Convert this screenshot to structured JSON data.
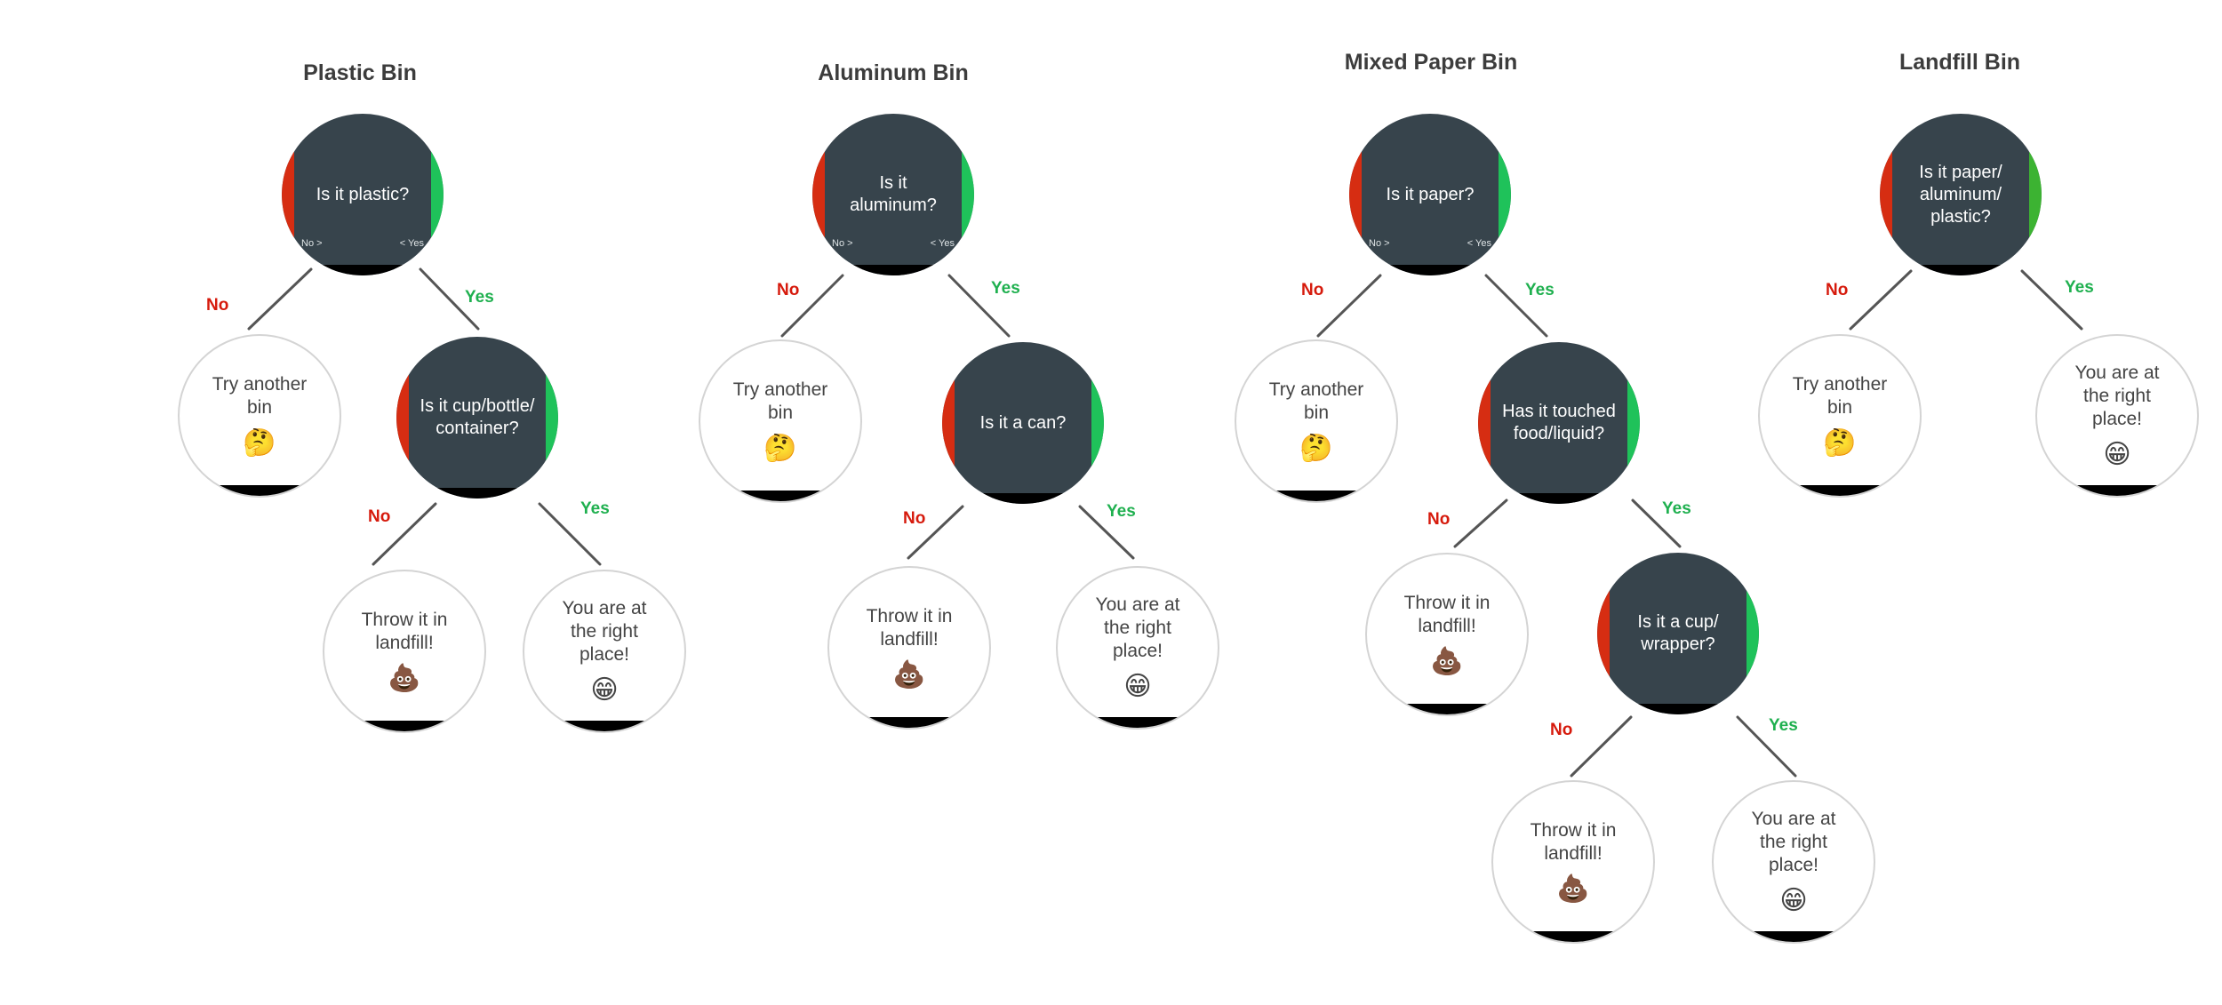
{
  "bins": [
    {
      "title": "Plastic Bin",
      "root": {
        "question": "Is it plastic?",
        "hint_no": "No >",
        "hint_yes": "< Yes"
      },
      "no_label": "No",
      "yes_label": "Yes",
      "no_node": {
        "text": "Try another bin",
        "emoji": "🤔"
      },
      "yes_node": {
        "question": "Is it cup/bottle/ container?"
      },
      "sub_no_label": "No",
      "sub_yes_label": "Yes",
      "sub_no_node": {
        "text": "Throw it in landfill!",
        "emoji": "💩"
      },
      "sub_yes_node": {
        "text": "You are at the right place!",
        "emoji": "😁"
      }
    },
    {
      "title": "Aluminum Bin",
      "root": {
        "question": "Is it aluminum?",
        "hint_no": "No >",
        "hint_yes": "< Yes"
      },
      "no_label": "No",
      "yes_label": "Yes",
      "no_node": {
        "text": "Try another bin",
        "emoji": "🤔"
      },
      "yes_node": {
        "question": "Is it a can?"
      },
      "sub_no_label": "No",
      "sub_yes_label": "Yes",
      "sub_no_node": {
        "text": "Throw it in landfill!",
        "emoji": "💩"
      },
      "sub_yes_node": {
        "text": "You are at the right place!",
        "emoji": "😁"
      }
    },
    {
      "title": "Mixed Paper Bin",
      "root": {
        "question": "Is it paper?",
        "hint_no": "No >",
        "hint_yes": "< Yes"
      },
      "no_label": "No",
      "yes_label": "Yes",
      "no_node": {
        "text": "Try another bin",
        "emoji": "🤔"
      },
      "yes_node": {
        "question": "Has it touched food/liquid?"
      },
      "sub_no_label": "No",
      "sub_yes_label": "Yes",
      "sub_no_node": {
        "text": "Throw it in landfill!",
        "emoji": "💩"
      },
      "sub_yes_node": {
        "question": "Is it a cup/ wrapper?"
      },
      "sub2_no_label": "No",
      "sub2_yes_label": "Yes",
      "sub2_no_node": {
        "text": "Throw it in landfill!",
        "emoji": "💩"
      },
      "sub2_yes_node": {
        "text": "You are at the right place!",
        "emoji": "😁"
      }
    },
    {
      "title": "Landfill Bin",
      "root": {
        "question": "Is it paper/ aluminum/ plastic?"
      },
      "no_label": "No",
      "yes_label": "Yes",
      "no_node": {
        "text": "Try another bin",
        "emoji": "🤔"
      },
      "yes_node": {
        "text": "You are at the right place!",
        "emoji": "😁"
      }
    }
  ],
  "colors": {
    "question_fill": "#37444c",
    "no": "#d61a0c",
    "yes": "#1fb04f",
    "stripe_no": "#d62d12",
    "stripe_yes": "#1fc25a"
  }
}
